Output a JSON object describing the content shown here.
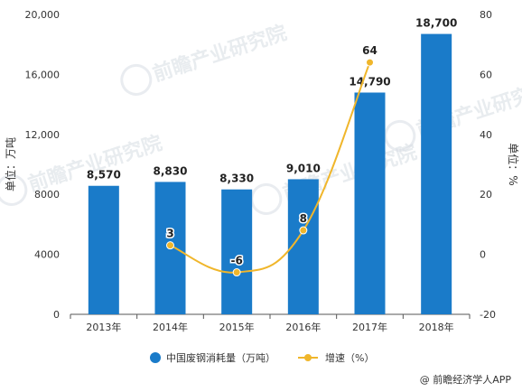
{
  "chart_data": {
    "type": "bar",
    "categories": [
      "2013年",
      "2014年",
      "2015年",
      "2016年",
      "2017年",
      "2018年"
    ],
    "series": [
      {
        "name": "中国废钢消耗量（万吨）",
        "kind": "bar",
        "axis": "left",
        "color": "#1a7bc9",
        "values": [
          8570,
          8830,
          8330,
          9010,
          14790,
          18700
        ],
        "labels": [
          "8,570",
          "8,830",
          "8,330",
          "9,010",
          "14,790",
          "18,700"
        ]
      },
      {
        "name": "增速（%）",
        "kind": "line",
        "axis": "right",
        "color": "#f0b62b",
        "values": [
          null,
          3,
          -6,
          8,
          64,
          null
        ],
        "labels": [
          "",
          "3",
          "-6",
          "8",
          "64",
          ""
        ]
      }
    ],
    "ylabel": "单位：万吨",
    "ylabel_right": "单位：%",
    "ylim": [
      0,
      20000
    ],
    "ylim_right": [
      -20,
      80
    ],
    "yticks": [
      "0",
      "4000",
      "8000",
      "12,000",
      "16,000",
      "20,000"
    ],
    "yticks_values": [
      0,
      4000,
      8000,
      12000,
      16000,
      20000
    ],
    "yticks_right": [
      "-20",
      "0",
      "20",
      "40",
      "60",
      "80"
    ],
    "yticks_right_values": [
      -20,
      0,
      20,
      40,
      60,
      80
    ],
    "grid": false,
    "legend_position": "bottom"
  },
  "watermark": {
    "text": "前瞻产业研究院"
  },
  "source": "@ 前瞻经济学人APP"
}
